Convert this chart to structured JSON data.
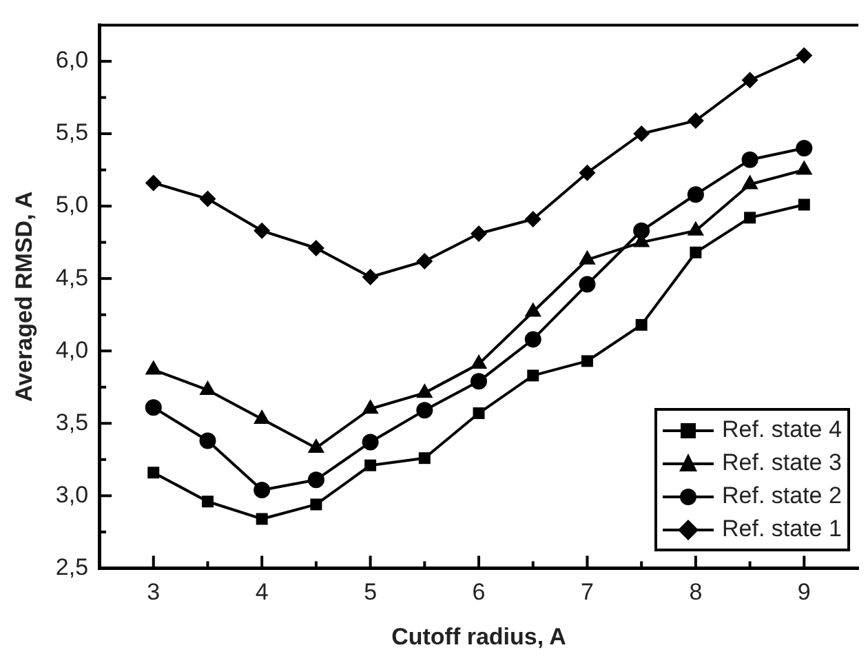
{
  "chart_data": {
    "type": "line",
    "xlabel": "Cutoff radius, A",
    "ylabel": "Averaged RMSD, A",
    "x": [
      3,
      3.5,
      4,
      4.5,
      5,
      5.5,
      6,
      6.5,
      7,
      7.5,
      8,
      8.5,
      9
    ],
    "xlim": [
      2.5,
      9.5
    ],
    "xticks": [
      3,
      {
        "value": 3.5,
        "label": null
      },
      4,
      {
        "value": 4.5,
        "label": null
      },
      5,
      {
        "value": 5.5,
        "label": null
      },
      6,
      {
        "value": 6.5,
        "label": null
      },
      7,
      {
        "value": 7.5,
        "label": null
      },
      8,
      {
        "value": 8.5,
        "label": null
      },
      9
    ],
    "ylim": [
      2.5,
      6.25
    ],
    "yticks": [
      {
        "value": 2.5,
        "label": "2,5"
      },
      {
        "value": 2.75,
        "label": null
      },
      {
        "value": 3,
        "label": "3,0"
      },
      {
        "value": 3.25,
        "label": null
      },
      {
        "value": 3.5,
        "label": "3,5"
      },
      {
        "value": 3.75,
        "label": null
      },
      {
        "value": 4,
        "label": "4,0"
      },
      {
        "value": 4.25,
        "label": null
      },
      {
        "value": 4.5,
        "label": "4,5"
      },
      {
        "value": 4.75,
        "label": null
      },
      {
        "value": 5,
        "label": "5,0"
      },
      {
        "value": 5.25,
        "label": null
      },
      {
        "value": 5.5,
        "label": "5,5"
      },
      {
        "value": 5.75,
        "label": null
      },
      {
        "value": 6,
        "label": "6,0"
      }
    ],
    "grid": false,
    "legend": "bottom right",
    "line_style": "solid",
    "series": [
      {
        "name": "Ref. state 4",
        "color": "#000000",
        "marker": "square",
        "values": [
          3.16,
          2.96,
          2.84,
          2.94,
          3.21,
          3.26,
          3.57,
          3.83,
          3.93,
          4.18,
          4.68,
          4.92,
          5.01
        ]
      },
      {
        "name": "Ref. state 3",
        "color": "#000000",
        "marker": "triangle",
        "values": [
          3.87,
          3.73,
          3.53,
          3.33,
          3.6,
          3.71,
          3.91,
          4.27,
          4.63,
          4.75,
          4.83,
          5.15,
          5.25
        ]
      },
      {
        "name": "Ref. state 2",
        "color": "#000000",
        "marker": "circle",
        "values": [
          3.61,
          3.38,
          3.04,
          3.11,
          3.37,
          3.59,
          3.79,
          4.08,
          4.46,
          4.83,
          5.08,
          5.32,
          5.4
        ]
      },
      {
        "name": "Ref. state 1",
        "color": "#000000",
        "marker": "diamond",
        "values": [
          5.16,
          5.05,
          4.83,
          4.71,
          4.51,
          4.62,
          4.81,
          4.91,
          5.23,
          5.5,
          5.59,
          5.87,
          6.04
        ]
      }
    ]
  }
}
